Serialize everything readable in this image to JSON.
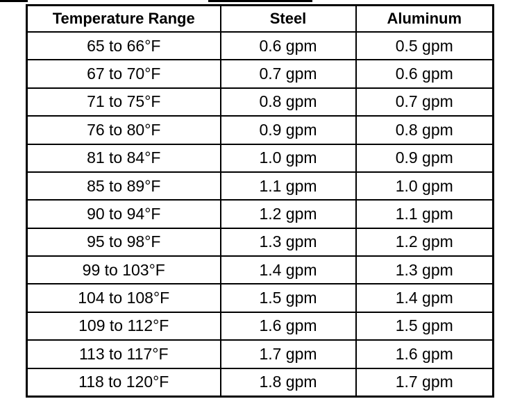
{
  "table": {
    "headers": [
      "Temperature Range",
      "Steel",
      "Aluminum"
    ],
    "rows": [
      [
        "65 to 66°F",
        "0.6 gpm",
        "0.5 gpm"
      ],
      [
        "67 to 70°F",
        "0.7 gpm",
        "0.6 gpm"
      ],
      [
        "71 to 75°F",
        "0.8 gpm",
        "0.7 gpm"
      ],
      [
        "76 to 80°F",
        "0.9 gpm",
        "0.8 gpm"
      ],
      [
        "81 to 84°F",
        "1.0 gpm",
        "0.9 gpm"
      ],
      [
        "85 to 89°F",
        "1.1 gpm",
        "1.0 gpm"
      ],
      [
        "90 to 94°F",
        "1.2 gpm",
        "1.1 gpm"
      ],
      [
        "95 to 98°F",
        "1.3 gpm",
        "1.2 gpm"
      ],
      [
        "99 to 103°F",
        "1.4 gpm",
        "1.3 gpm"
      ],
      [
        "104 to 108°F",
        "1.5 gpm",
        "1.4 gpm"
      ],
      [
        "109 to 112°F",
        "1.6 gpm",
        "1.5 gpm"
      ],
      [
        "113 to 117°F",
        "1.7 gpm",
        "1.6 gpm"
      ],
      [
        "118 to 120°F",
        "1.8 gpm",
        "1.7 gpm"
      ]
    ]
  }
}
